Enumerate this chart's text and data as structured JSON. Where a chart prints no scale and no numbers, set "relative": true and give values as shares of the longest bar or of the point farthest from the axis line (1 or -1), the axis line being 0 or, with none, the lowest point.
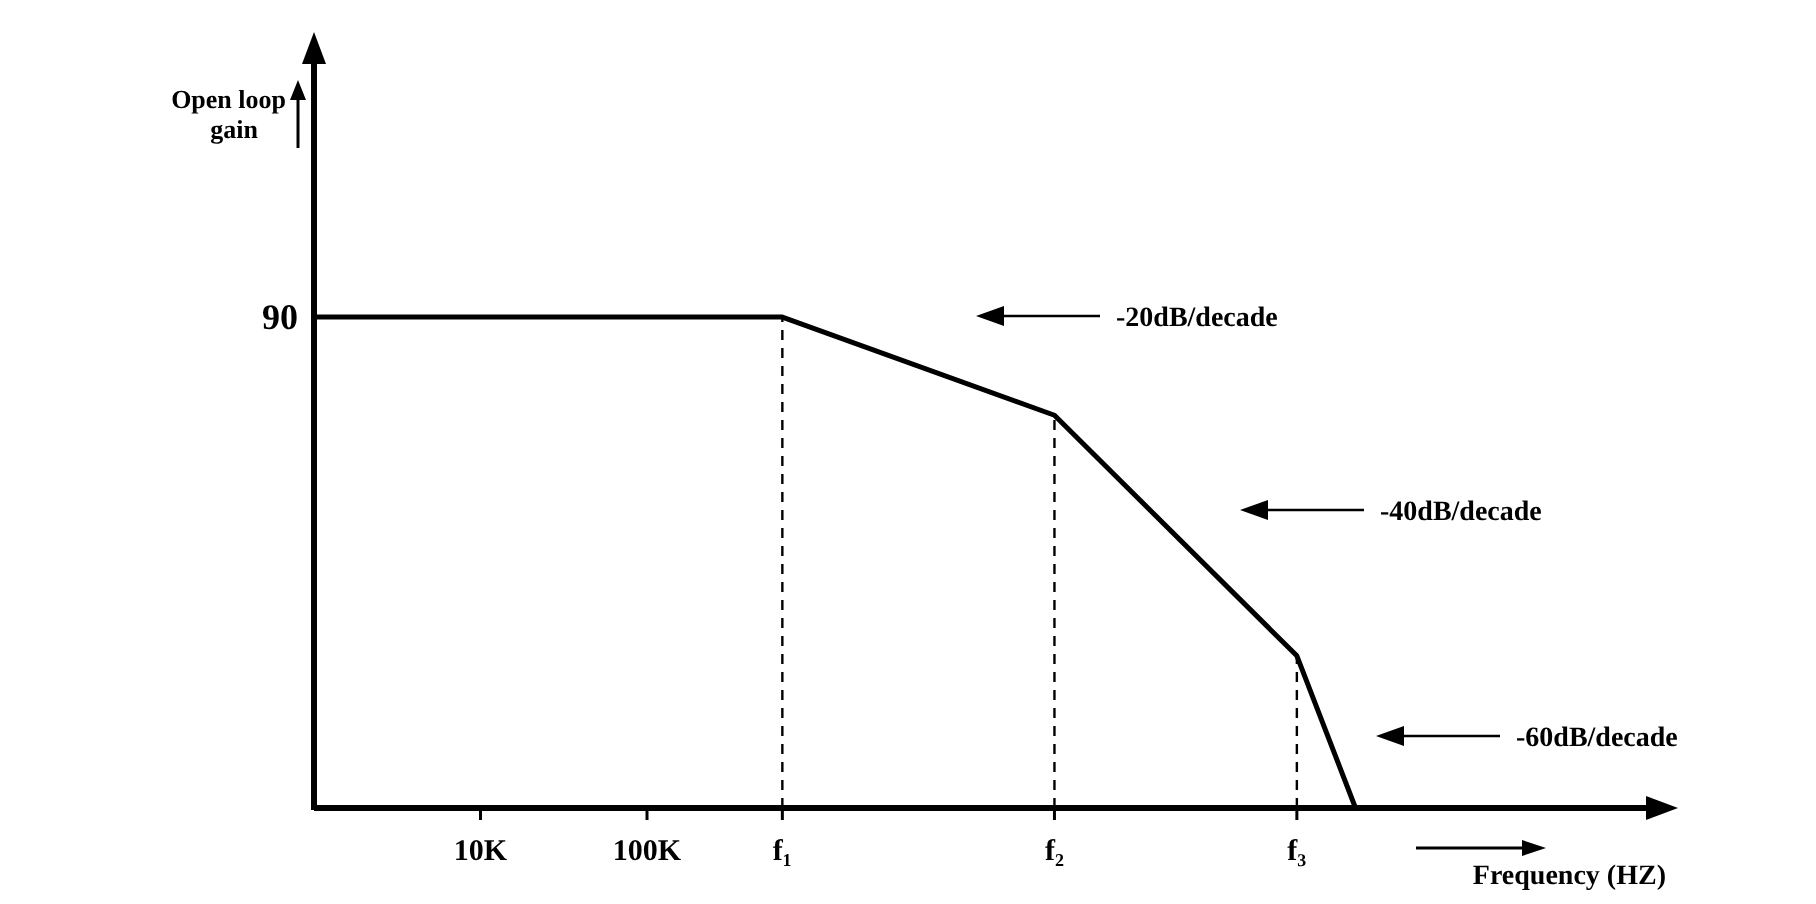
{
  "chart_data": {
    "type": "line",
    "relative": true,
    "log": "x",
    "xlabel": "Frequency (HZ)",
    "xlim": [
      1000,
      100000000000
    ],
    "xticks": [
      {
        "value": 10000,
        "label": "10K"
      },
      {
        "value": 100000,
        "label": "100K"
      },
      {
        "value": 650000,
        "label": "f₁"
      },
      {
        "value": 28000000,
        "label": "f₂"
      },
      {
        "value": 800000000,
        "label": "f₃"
      }
    ],
    "series": [
      {
        "color": "#000000",
        "x": [
          1000,
          650000,
          28000000,
          800000000,
          1800000000
        ],
        "values": [
          1,
          1,
          0.8,
          0.31,
          0
        ]
      }
    ],
    "ref_lines": [
      {
        "axis": "x",
        "value": 650000,
        "line_style": "dashed"
      },
      {
        "axis": "x",
        "value": 28000000,
        "line_style": "dashed"
      },
      {
        "axis": "x",
        "value": 800000000,
        "line_style": "dashed"
      }
    ],
    "annotations": [
      "Open loop gain",
      "90",
      "-20dB/decade",
      "-40dB/decade",
      "-60dB/decade"
    ],
    "marker": "none",
    "line_style": "solid",
    "grid": false
  }
}
